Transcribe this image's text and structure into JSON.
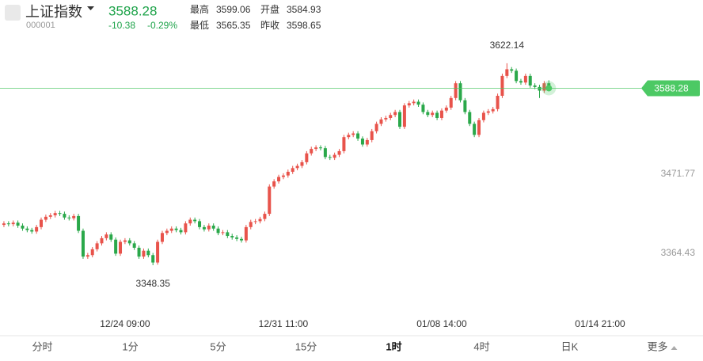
{
  "quote": {
    "name": "上证指数",
    "code": "000001",
    "price": 3588.28,
    "change": "-10.38",
    "change_pct": "-0.29%",
    "stats": [
      {
        "label": "最高",
        "value": "3599.06",
        "color": "#e8433c"
      },
      {
        "label": "开盘",
        "value": "3584.93",
        "color": "#1ea34a"
      },
      {
        "label": "最低",
        "value": "3565.35",
        "color": "#1ea34a"
      },
      {
        "label": "昨收",
        "value": "3598.65",
        "color": "#222222"
      }
    ]
  },
  "chart_data": {
    "type": "candlestick",
    "up_color": "#e8534b",
    "down_color": "#2aa84a",
    "price_color": "#4cc964",
    "ylim": [
      3289.3,
      3659.6
    ],
    "yticks": [
      3364.43,
      3471.77
    ],
    "xlim": [
      -0.5,
      136.5
    ],
    "xticks": [
      {
        "value": 26,
        "label": "12/24 09:00"
      },
      {
        "value": 60,
        "label": "12/31 11:00"
      },
      {
        "value": 94,
        "label": "01/08 14:00"
      },
      {
        "value": 128,
        "label": "01/14 21:00"
      }
    ],
    "annotations": [
      {
        "candle": 108,
        "part": 1
      },
      {
        "candle": 32,
        "part": 2
      }
    ],
    "candles": [
      [
        3403,
        3408,
        3400,
        3405
      ],
      [
        3405,
        3408,
        3401,
        3404
      ],
      [
        3404,
        3409,
        3401,
        3406
      ],
      [
        3406,
        3409,
        3399,
        3402
      ],
      [
        3402,
        3405,
        3395,
        3398
      ],
      [
        3398,
        3401,
        3393,
        3396
      ],
      [
        3396,
        3399,
        3391,
        3394
      ],
      [
        3394,
        3403,
        3391,
        3400
      ],
      [
        3400,
        3413,
        3397,
        3410
      ],
      [
        3410,
        3417,
        3407,
        3414
      ],
      [
        3414,
        3419,
        3411,
        3416
      ],
      [
        3416,
        3422,
        3413,
        3419
      ],
      [
        3419,
        3422,
        3415,
        3418
      ],
      [
        3418,
        3421,
        3410,
        3413
      ],
      [
        3413,
        3416,
        3409,
        3412
      ],
      [
        3412,
        3418,
        3409,
        3415
      ],
      [
        3415,
        3418,
        3392,
        3395
      ],
      [
        3395,
        3398,
        3357,
        3360
      ],
      [
        3360,
        3365,
        3357,
        3362
      ],
      [
        3362,
        3373,
        3359,
        3370
      ],
      [
        3370,
        3381,
        3367,
        3378
      ],
      [
        3378,
        3388,
        3375,
        3385
      ],
      [
        3385,
        3393,
        3382,
        3390
      ],
      [
        3390,
        3393,
        3380,
        3383
      ],
      [
        3383,
        3386,
        3361,
        3364
      ],
      [
        3364,
        3383,
        3361,
        3380
      ],
      [
        3380,
        3385,
        3377,
        3382
      ],
      [
        3382,
        3385,
        3375,
        3378
      ],
      [
        3378,
        3381,
        3369,
        3372
      ],
      [
        3372,
        3375,
        3357,
        3360
      ],
      [
        3360,
        3371,
        3357,
        3368
      ],
      [
        3368,
        3371,
        3359,
        3362
      ],
      [
        3362,
        3365,
        3348.35,
        3352
      ],
      [
        3352,
        3383,
        3349,
        3380
      ],
      [
        3380,
        3395,
        3377,
        3392
      ],
      [
        3392,
        3398,
        3389,
        3395
      ],
      [
        3395,
        3401,
        3392,
        3398
      ],
      [
        3398,
        3401,
        3393,
        3396
      ],
      [
        3396,
        3399,
        3390,
        3393
      ],
      [
        3393,
        3408,
        3390,
        3405
      ],
      [
        3405,
        3413,
        3402,
        3410
      ],
      [
        3410,
        3413,
        3405,
        3408
      ],
      [
        3408,
        3411,
        3397,
        3400
      ],
      [
        3400,
        3403,
        3394,
        3397
      ],
      [
        3397,
        3405,
        3394,
        3402
      ],
      [
        3402,
        3405,
        3395,
        3398
      ],
      [
        3398,
        3401,
        3389,
        3392
      ],
      [
        3392,
        3396,
        3389,
        3393
      ],
      [
        3393,
        3396,
        3385,
        3388
      ],
      [
        3388,
        3391,
        3383,
        3386
      ],
      [
        3386,
        3389,
        3381,
        3384
      ],
      [
        3384,
        3387,
        3379,
        3382
      ],
      [
        3382,
        3403,
        3379,
        3400
      ],
      [
        3400,
        3410,
        3397,
        3407
      ],
      [
        3407,
        3411,
        3404,
        3408
      ],
      [
        3408,
        3414,
        3405,
        3411
      ],
      [
        3411,
        3421,
        3408,
        3418
      ],
      [
        3418,
        3458,
        3415,
        3455
      ],
      [
        3455,
        3465,
        3452,
        3462
      ],
      [
        3462,
        3471,
        3459,
        3468
      ],
      [
        3468,
        3473,
        3465,
        3470
      ],
      [
        3470,
        3478,
        3467,
        3475
      ],
      [
        3475,
        3483,
        3472,
        3480
      ],
      [
        3480,
        3486,
        3477,
        3483
      ],
      [
        3483,
        3491,
        3480,
        3488
      ],
      [
        3488,
        3503,
        3485,
        3500
      ],
      [
        3500,
        3509,
        3497,
        3506
      ],
      [
        3506,
        3511,
        3503,
        3508
      ],
      [
        3508,
        3511,
        3504,
        3507
      ],
      [
        3507,
        3510,
        3492,
        3495
      ],
      [
        3495,
        3498,
        3491,
        3494
      ],
      [
        3494,
        3501,
        3491,
        3498
      ],
      [
        3498,
        3506,
        3495,
        3503
      ],
      [
        3503,
        3525,
        3500,
        3522
      ],
      [
        3522,
        3528,
        3519,
        3525
      ],
      [
        3525,
        3530,
        3522,
        3527
      ],
      [
        3527,
        3530,
        3517,
        3520
      ],
      [
        3520,
        3523,
        3509,
        3512
      ],
      [
        3512,
        3521,
        3509,
        3518
      ],
      [
        3518,
        3533,
        3515,
        3530
      ],
      [
        3530,
        3543,
        3527,
        3540
      ],
      [
        3540,
        3549,
        3537,
        3546
      ],
      [
        3546,
        3551,
        3543,
        3548
      ],
      [
        3548,
        3555,
        3545,
        3552
      ],
      [
        3552,
        3559,
        3549,
        3556
      ],
      [
        3556,
        3559,
        3533,
        3536
      ],
      [
        3536,
        3568,
        3533,
        3565
      ],
      [
        3565,
        3571,
        3562,
        3568
      ],
      [
        3568,
        3573,
        3565,
        3570
      ],
      [
        3570,
        3573,
        3563,
        3566
      ],
      [
        3566,
        3569,
        3553,
        3556
      ],
      [
        3556,
        3559,
        3549,
        3552
      ],
      [
        3552,
        3558,
        3549,
        3555
      ],
      [
        3555,
        3558,
        3545,
        3548
      ],
      [
        3548,
        3561,
        3545,
        3558
      ],
      [
        3558,
        3565,
        3555,
        3562
      ],
      [
        3562,
        3578,
        3559,
        3575
      ],
      [
        3575,
        3598,
        3572,
        3595
      ],
      [
        3595,
        3598,
        3569,
        3572
      ],
      [
        3572,
        3575,
        3553,
        3556
      ],
      [
        3556,
        3559,
        3537,
        3540
      ],
      [
        3540,
        3543,
        3522,
        3525
      ],
      [
        3525,
        3548,
        3522,
        3545
      ],
      [
        3545,
        3558,
        3542,
        3555
      ],
      [
        3555,
        3560,
        3552,
        3557
      ],
      [
        3557,
        3563,
        3554,
        3560
      ],
      [
        3560,
        3581,
        3557,
        3578
      ],
      [
        3578,
        3608,
        3575,
        3605
      ],
      [
        3605,
        3622.14,
        3602,
        3614
      ],
      [
        3614,
        3617,
        3609,
        3612
      ],
      [
        3612,
        3615,
        3595,
        3598
      ],
      [
        3598,
        3601,
        3593,
        3596
      ],
      [
        3596,
        3608,
        3593,
        3605
      ],
      [
        3605,
        3608,
        3589,
        3592
      ],
      [
        3592,
        3595,
        3587,
        3590
      ],
      [
        3590,
        3593,
        3575,
        3585
      ],
      [
        3585,
        3598,
        3582,
        3595
      ],
      [
        3595,
        3599.06,
        3585,
        3588.28
      ]
    ]
  },
  "tabs": [
    "分时",
    "1分",
    "5分",
    "15分",
    "1时",
    "4时",
    "日K",
    "更多"
  ],
  "active_tab_index": 4
}
